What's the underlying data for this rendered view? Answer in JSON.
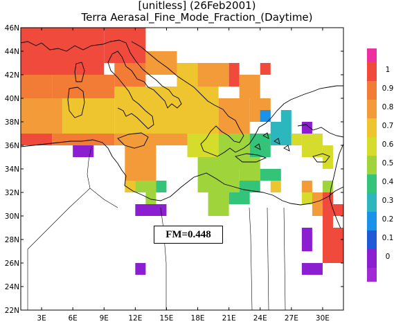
{
  "title": {
    "line1": "[unitless]  (26Feb2001)",
    "line2": "Terra Aerasal_Fine_Mode_Fraction_(Daytime)"
  },
  "annotation": {
    "fm_label": "FM=0.448"
  },
  "axes": {
    "lat_ticks": [
      "46N",
      "44N",
      "42N",
      "40N",
      "38N",
      "36N",
      "34N",
      "32N",
      "30N",
      "28N",
      "26N",
      "24N",
      "22N"
    ],
    "lon_ticks": [
      "3E",
      "6E",
      "9E",
      "12E",
      "15E",
      "18E",
      "21E",
      "24E",
      "27E",
      "30E"
    ],
    "lon_range": [
      1,
      32
    ],
    "lat_range": [
      22,
      46
    ]
  },
  "colorbar": {
    "labels": [
      "1",
      "0.9",
      "0.8",
      "0.7",
      "0.6",
      "0.5",
      "0.4",
      "0.3",
      "0.2",
      "0.1",
      "0"
    ],
    "colors": [
      "#ee2fa0",
      "#ef4a3c",
      "#f27b35",
      "#f39b38",
      "#eec52f",
      "#d6dc2c",
      "#9fd43a",
      "#33c47a",
      "#2bb7bd",
      "#1a92ea",
      "#2059d7",
      "#8a1ed0",
      "#a02bd4"
    ]
  },
  "colors": {
    "land_outline": "#000000",
    "background": "#ffffff"
  }
}
